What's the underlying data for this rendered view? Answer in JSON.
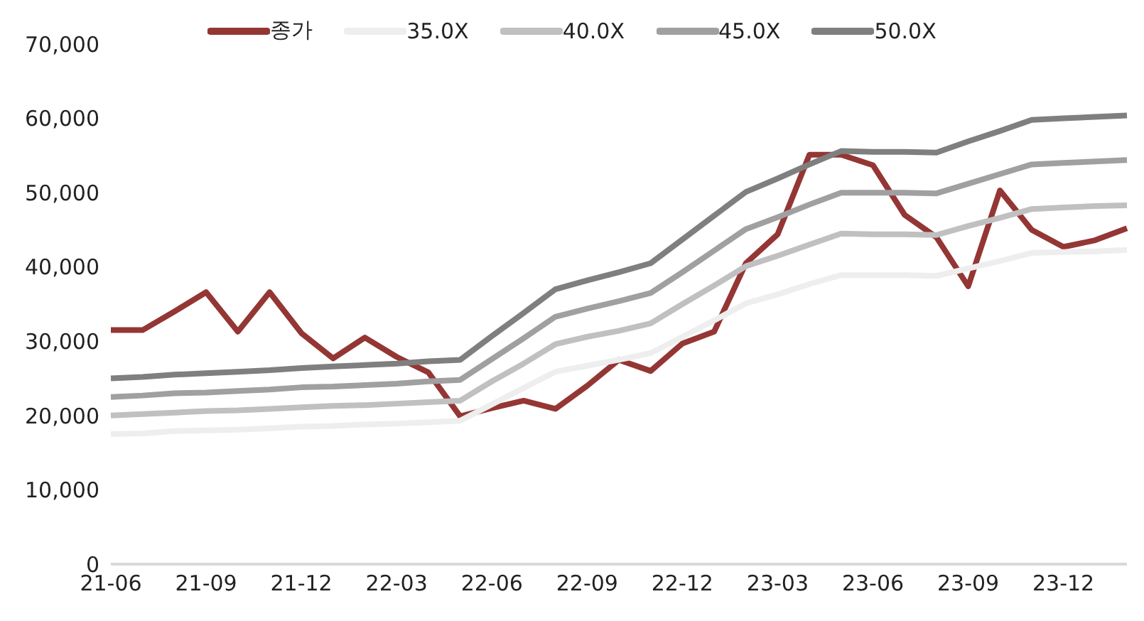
{
  "chart_data": {
    "type": "line",
    "categories": [
      "21-06",
      null,
      null,
      "21-09",
      null,
      null,
      "21-12",
      null,
      null,
      "22-03",
      null,
      null,
      "22-06",
      null,
      null,
      "22-09",
      null,
      null,
      "22-12",
      null,
      null,
      "23-03",
      null,
      null,
      "23-06",
      null,
      null,
      "23-09",
      null,
      null,
      "23-12",
      null,
      null
    ],
    "series": [
      {
        "name": "종가",
        "color": "#943634",
        "values": [
          31500,
          31500,
          34000,
          36600,
          31300,
          36600,
          31100,
          27700,
          30500,
          27900,
          25800,
          19900,
          21000,
          22000,
          20900,
          24000,
          27500,
          26000,
          29700,
          31300,
          40500,
          44400,
          55100,
          55100,
          53700,
          47000,
          44000,
          37400,
          50300,
          45000,
          42700,
          43600,
          45200
        ]
      },
      {
        "name": "35.0X",
        "color": "#eeeeee",
        "values": [
          17500,
          17600,
          17900,
          18000,
          18100,
          18300,
          18500,
          18600,
          18800,
          18900,
          19100,
          19300,
          21500,
          23700,
          25900,
          26700,
          27500,
          28400,
          30600,
          32800,
          35100,
          36300,
          37700,
          38900,
          38900,
          38900,
          38800,
          39800,
          40800,
          41900,
          42000,
          42100,
          42300
        ]
      },
      {
        "name": "40.0X",
        "color": "#c0c0c0",
        "values": [
          20000,
          20200,
          20400,
          20600,
          20700,
          20900,
          21100,
          21300,
          21400,
          21600,
          21800,
          22000,
          24600,
          27000,
          29600,
          30600,
          31400,
          32400,
          35000,
          37500,
          40100,
          41500,
          43000,
          44500,
          44400,
          44400,
          44300,
          45500,
          46600,
          47800,
          48000,
          48200,
          48300
        ]
      },
      {
        "name": "45.0X",
        "color": "#a0a0a0",
        "values": [
          22500,
          22700,
          23000,
          23100,
          23300,
          23500,
          23800,
          23900,
          24100,
          24300,
          24600,
          24800,
          27600,
          30400,
          33300,
          34400,
          35400,
          36500,
          39300,
          42200,
          45100,
          46700,
          48400,
          50000,
          50000,
          50000,
          49900,
          51200,
          52500,
          53800,
          54000,
          54200,
          54400
        ]
      },
      {
        "name": "50.0X",
        "color": "#7f7f7f",
        "values": [
          25000,
          25200,
          25500,
          25700,
          25900,
          26100,
          26400,
          26600,
          26800,
          27000,
          27300,
          27500,
          30700,
          33800,
          37000,
          38200,
          39300,
          40500,
          43700,
          46900,
          50100,
          51900,
          53800,
          55600,
          55500,
          55500,
          55400,
          56900,
          58300,
          59800,
          60000,
          60200,
          60400
        ]
      }
    ],
    "ylim": [
      0,
      70000
    ],
    "yticks": [
      0,
      {
        "value": 10000,
        "label": "10,000"
      },
      {
        "value": 20000,
        "label": "20,000"
      },
      {
        "value": 30000,
        "label": "30,000"
      },
      {
        "value": 40000,
        "label": "40,000"
      },
      {
        "value": 50000,
        "label": "50,000"
      },
      {
        "value": 60000,
        "label": "60,000"
      },
      {
        "value": 70000,
        "label": "70,000"
      }
    ],
    "grid": false,
    "legend": "top",
    "marker": "none",
    "line_style": "solid"
  }
}
